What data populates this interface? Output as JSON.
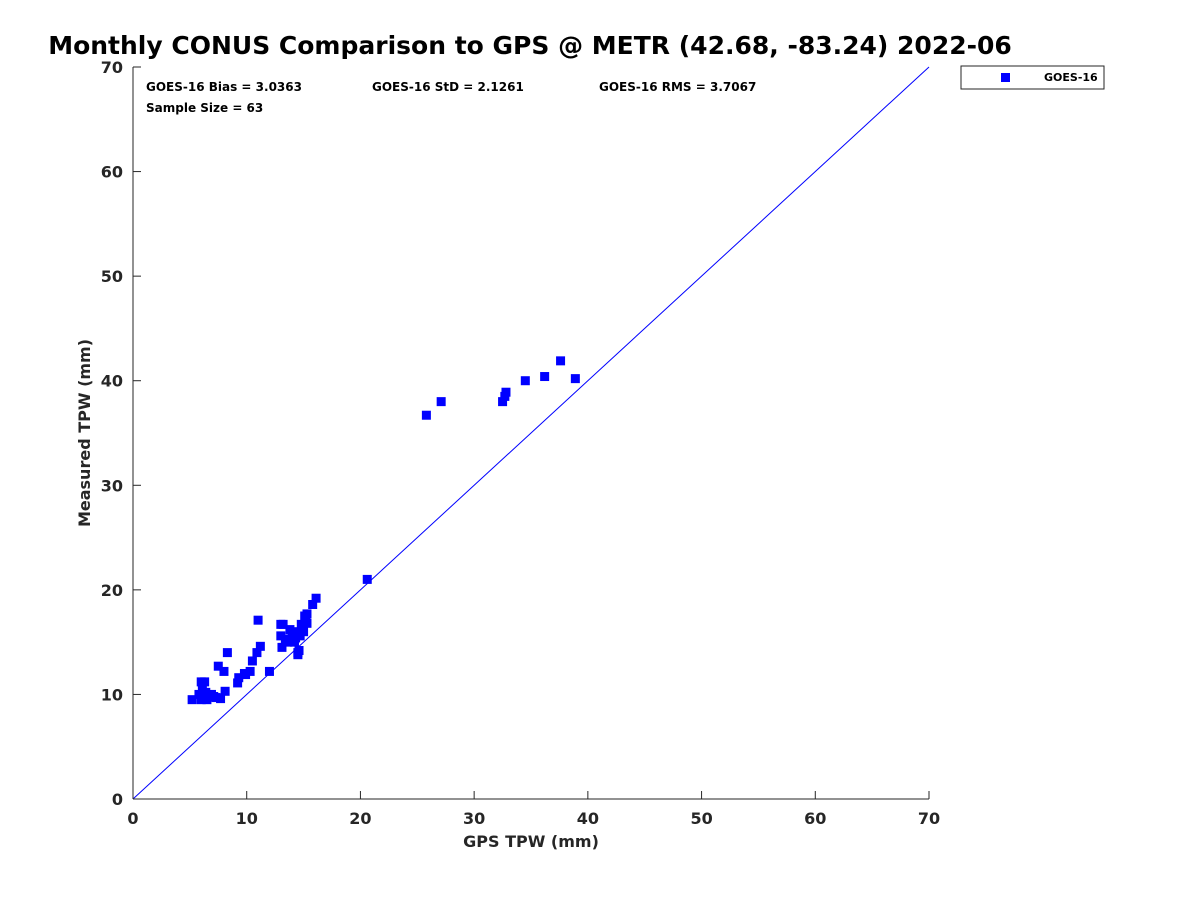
{
  "chart_data": {
    "type": "scatter",
    "title": "Monthly CONUS Comparison to GPS @ METR (42.68, -83.24) 2022-06",
    "xlabel": "GPS TPW (mm)",
    "ylabel": "Measured TPW (mm)",
    "xlim": [
      0,
      70
    ],
    "ylim": [
      0,
      70
    ],
    "xticks": [
      0,
      10,
      20,
      30,
      40,
      50,
      60,
      70
    ],
    "yticks": [
      0,
      10,
      20,
      30,
      40,
      50,
      60,
      70
    ],
    "grid": false,
    "legend_position": "outside-top-right",
    "reference_line": {
      "name": "1:1 line",
      "x": [
        0,
        70
      ],
      "y": [
        0,
        70
      ],
      "color": "#0000ff"
    },
    "stats": {
      "bias": "GOES-16 Bias = 3.0363",
      "std": "GOES-16 StD = 2.1261",
      "rms": "GOES-16 RMS = 3.7067",
      "sample": "Sample Size = 63"
    },
    "series": [
      {
        "name": "GOES-16",
        "color": "#0000ff",
        "marker": "square",
        "x": [
          5.2,
          5.8,
          6.0,
          6.1,
          6.2,
          6.3,
          6.4,
          6.7,
          6.9,
          7.1,
          7.5,
          7.7,
          8.0,
          8.1,
          8.3,
          9.2,
          9.3,
          9.8,
          10.3,
          10.5,
          10.9,
          11.0,
          11.2,
          12.0,
          13.0,
          13.1,
          13.2,
          13.4,
          13.6,
          13.8,
          14.0,
          14.1,
          14.2,
          14.3,
          14.4,
          14.5,
          14.6,
          14.7,
          14.8,
          14.9,
          15.0,
          15.1,
          15.2,
          15.3,
          15.8,
          16.1,
          20.6,
          25.8,
          27.1,
          32.5,
          32.7,
          32.8,
          34.5,
          36.2,
          37.6,
          38.9,
          6.0,
          6.5,
          7.3,
          9.9,
          13.0,
          14.5,
          15.3
        ],
        "y": [
          9.5,
          10.0,
          11.2,
          10.5,
          9.6,
          11.2,
          10.2,
          9.8,
          10.0,
          9.8,
          12.7,
          9.6,
          12.2,
          10.3,
          14.0,
          11.1,
          11.6,
          12.0,
          12.2,
          13.2,
          14.0,
          17.1,
          14.6,
          12.2,
          15.6,
          14.5,
          16.7,
          15.3,
          15.0,
          16.2,
          15.6,
          15.3,
          15.0,
          15.4,
          16.0,
          13.8,
          14.2,
          15.6,
          16.7,
          16.3,
          16.0,
          17.5,
          17.2,
          16.8,
          18.6,
          19.2,
          21.0,
          36.7,
          38.0,
          38.0,
          38.5,
          38.9,
          40.0,
          40.4,
          41.9,
          40.2,
          9.5,
          9.5,
          9.7,
          11.9,
          16.7,
          14.0,
          17.7
        ]
      }
    ]
  }
}
